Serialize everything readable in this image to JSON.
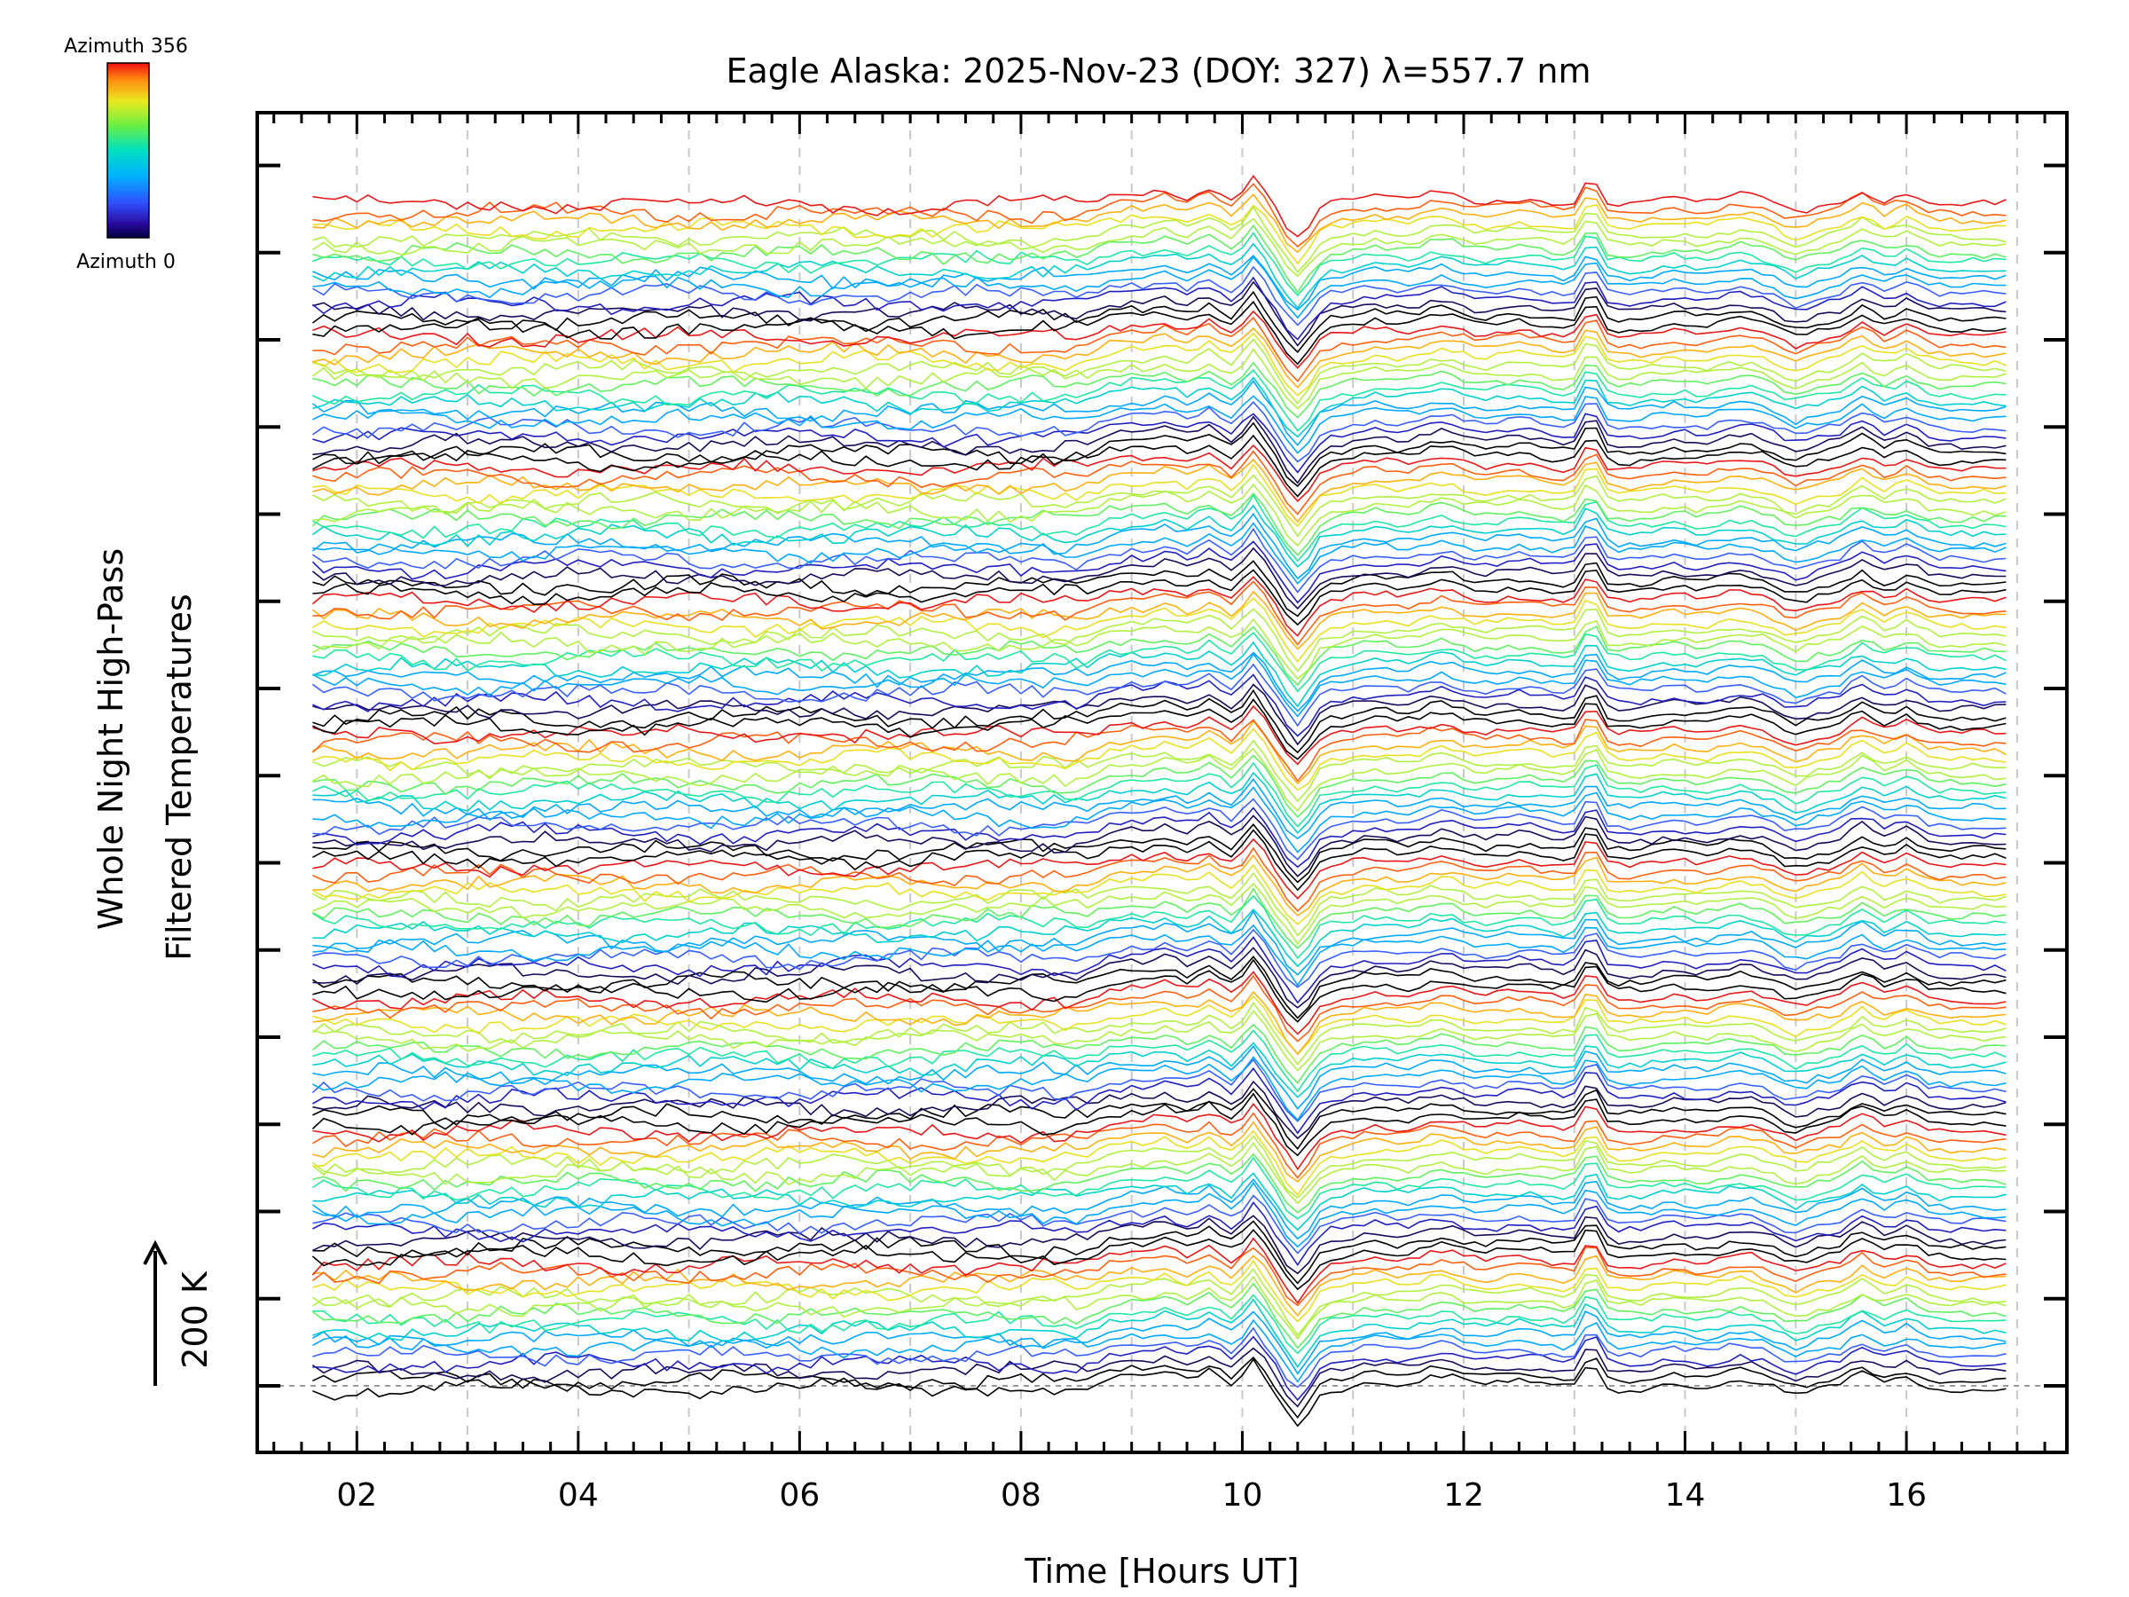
{
  "chart_data": {
    "type": "line",
    "title": "Eagle Alaska: 2025-Nov-23 (DOY: 327) λ=557.7 nm",
    "xlabel": "Time [Hours UT]",
    "ylabel_line1": "Whole Night High-Pass",
    "ylabel_line2": "Filtered Temperatures",
    "scale_label": "200 K",
    "xlim": [
      1.1,
      17.45
    ],
    "x_tick_labels": [
      {
        "value": 2,
        "label": "02"
      },
      {
        "value": 4,
        "label": "04"
      },
      {
        "value": 6,
        "label": "06"
      },
      {
        "value": 8,
        "label": "08"
      },
      {
        "value": 10,
        "label": "10"
      },
      {
        "value": 12,
        "label": "12"
      },
      {
        "value": 14,
        "label": "14"
      },
      {
        "value": 16,
        "label": "16"
      }
    ],
    "x_range": [
      1.6,
      16.9
    ],
    "series_count": 144,
    "groups": 9,
    "colorbar": {
      "top_label": "Azimuth 356",
      "bottom_label": "Azimuth 0",
      "min": 0,
      "max": 356
    },
    "features": [
      {
        "x": 8.8,
        "amp": 0.25,
        "width": 0.12
      },
      {
        "x": 9.0,
        "amp": 0.3,
        "width": 0.12
      },
      {
        "x": 9.3,
        "amp": 0.45,
        "width": 0.2
      },
      {
        "x": 9.7,
        "amp": 0.5,
        "width": 0.15
      },
      {
        "x": 10.1,
        "amp": 0.8,
        "width": 0.12
      },
      {
        "x": 10.5,
        "amp": -1.0,
        "width": 0.15
      },
      {
        "x": 11.2,
        "amp": 0.2,
        "width": 0.25
      },
      {
        "x": 11.8,
        "amp": 0.35,
        "width": 0.25
      },
      {
        "x": 12.5,
        "amp": 0.2,
        "width": 0.3
      },
      {
        "x": 13.15,
        "amp": 0.85,
        "width": 0.1
      },
      {
        "x": 13.9,
        "amp": 0.15,
        "width": 0.2
      },
      {
        "x": 14.5,
        "amp": 0.25,
        "width": 0.25
      },
      {
        "x": 15.0,
        "amp": -0.25,
        "width": 0.15
      },
      {
        "x": 15.6,
        "amp": 0.45,
        "width": 0.15
      },
      {
        "x": 16.0,
        "amp": 0.35,
        "width": 0.15
      }
    ],
    "colors": [
      "#000000",
      "#1a0a5a",
      "#2020c0",
      "#3860ff",
      "#00a8ff",
      "#00d0d0",
      "#20e8a0",
      "#60f060",
      "#b0f040",
      "#e8e020",
      "#ffb010",
      "#ff6010",
      "#e81818"
    ]
  }
}
